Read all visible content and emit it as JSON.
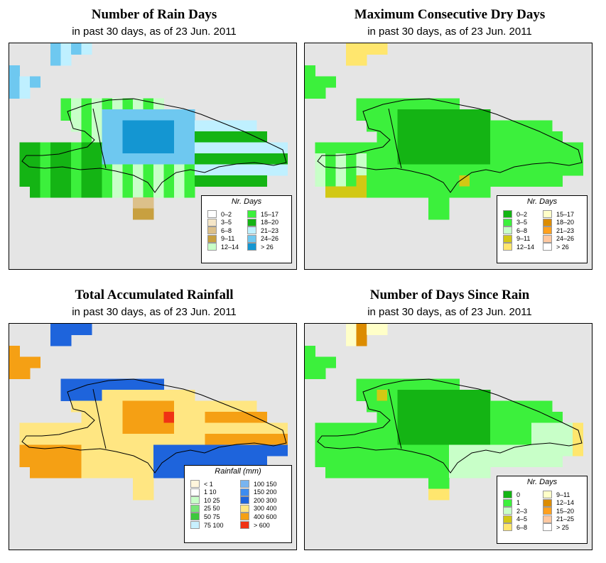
{
  "panels": [
    {
      "title": "Number of Rain Days",
      "subtitle": "in past 30 days, as of  23 Jun. 2011",
      "legend_title": "Nr. Days",
      "legend": [
        {
          "label": "0–2",
          "color": "#ffffff"
        },
        {
          "label": "3–5",
          "color": "#f5e6c8"
        },
        {
          "label": "6–8",
          "color": "#dcc08a"
        },
        {
          "label": "9–11",
          "color": "#c8a040"
        },
        {
          "label": "12–14",
          "color": "#c8ffc8"
        },
        {
          "label": "15–17",
          "color": "#3cf03c"
        },
        {
          "label": "18–20",
          "color": "#14b414"
        },
        {
          "label": "21–23",
          "color": "#bff0ff"
        },
        {
          "label": "24–26",
          "color": "#6ec8f0"
        },
        {
          "label": "> 26",
          "color": "#1496d2"
        }
      ]
    },
    {
      "title": "Maximum Consecutive Dry Days",
      "subtitle": "in past 30 days, as of  23 Jun. 2011",
      "legend_title": "Nr. Days",
      "legend": [
        {
          "label": "0–2",
          "color": "#14b414"
        },
        {
          "label": "3–5",
          "color": "#3cf03c"
        },
        {
          "label": "6–8",
          "color": "#c8ffc8"
        },
        {
          "label": "9–11",
          "color": "#d2c814"
        },
        {
          "label": "12–14",
          "color": "#ffe66e"
        },
        {
          "label": "15–17",
          "color": "#ffffc8"
        },
        {
          "label": "18–20",
          "color": "#dc8c00"
        },
        {
          "label": "21–23",
          "color": "#ffa01e"
        },
        {
          "label": "24–26",
          "color": "#ffc8a0"
        },
        {
          "label": "> 26",
          "color": "#ffffff"
        }
      ]
    },
    {
      "title": "Total Accumulated Rainfall",
      "subtitle": "in past 30 days, as of  23 Jun. 2011",
      "legend_title": "Rainfall (mm)",
      "legend": [
        {
          "label": "< 1",
          "color": "#fff5dc"
        },
        {
          "label": "1    10",
          "color": "#ffffff"
        },
        {
          "label": "10    25",
          "color": "#c8ffc8"
        },
        {
          "label": "25    50",
          "color": "#78e678"
        },
        {
          "label": "50    75",
          "color": "#3cc83c"
        },
        {
          "label": "75   100",
          "color": "#c8f0ff"
        },
        {
          "label": "100  150",
          "color": "#78b4f0"
        },
        {
          "label": "150  200",
          "color": "#3c8cf0"
        },
        {
          "label": "200  300",
          "color": "#1e64dc"
        },
        {
          "label": "300  400",
          "color": "#ffe682"
        },
        {
          "label": "400  600",
          "color": "#f5a014"
        },
        {
          "label": "> 600",
          "color": "#f03214"
        }
      ]
    },
    {
      "title": "Number of Days Since Rain",
      "subtitle": "in past 30 days, as of  23 Jun. 2011",
      "legend_title": "Nr. Days",
      "legend": [
        {
          "label": "0",
          "color": "#14b414"
        },
        {
          "label": "1",
          "color": "#3cf03c"
        },
        {
          "label": "2–3",
          "color": "#c8ffc8"
        },
        {
          "label": "4–5",
          "color": "#d2c814"
        },
        {
          "label": "6–8",
          "color": "#ffe66e"
        },
        {
          "label": "9–11",
          "color": "#ffffc8"
        },
        {
          "label": "12–14",
          "color": "#dc8c00"
        },
        {
          "label": "15–20",
          "color": "#ffa01e"
        },
        {
          "label": "21–25",
          "color": "#ffc8a0"
        },
        {
          "label": "> 25",
          "color": "#ffffff"
        }
      ]
    }
  ]
}
